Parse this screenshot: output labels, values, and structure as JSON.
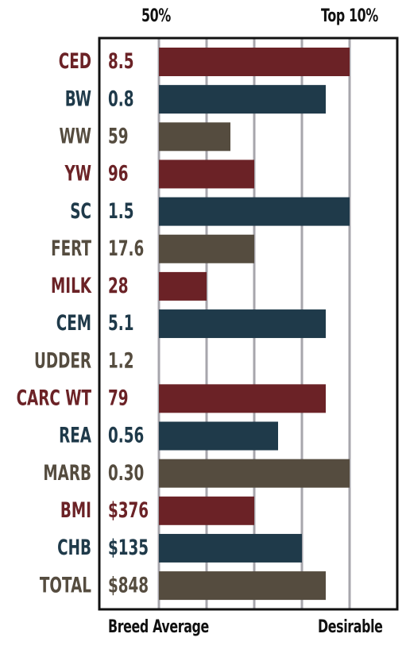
{
  "header": {
    "left_label": "50%",
    "right_label": "Top 10%"
  },
  "footer": {
    "left_label": "Breed Average",
    "right_label": "Desirable"
  },
  "colors": {
    "red": "#6b2226",
    "blue": "#1f3a4a",
    "brown": "#554c3f",
    "grid": "#a7a6ac",
    "frame": "#111111"
  },
  "chart_data": {
    "type": "bar",
    "orientation": "horizontal",
    "xlabel": "",
    "ylabel": "",
    "scale": [
      "50%",
      "Top 10%"
    ],
    "rows": [
      {
        "trait": "CED",
        "value": "8.5",
        "bar_grid_units": 4,
        "color": "red"
      },
      {
        "trait": "BW",
        "value": "0.8",
        "bar_grid_units": 3.5,
        "color": "blue"
      },
      {
        "trait": "WW",
        "value": "59",
        "bar_grid_units": 1.5,
        "color": "brown"
      },
      {
        "trait": "YW",
        "value": "96",
        "bar_grid_units": 2,
        "color": "red"
      },
      {
        "trait": "SC",
        "value": "1.5",
        "bar_grid_units": 4,
        "color": "blue"
      },
      {
        "trait": "FERT",
        "value": "17.6",
        "bar_grid_units": 2,
        "color": "brown"
      },
      {
        "trait": "MILK",
        "value": "28",
        "bar_grid_units": 1,
        "color": "red"
      },
      {
        "trait": "CEM",
        "value": "5.1",
        "bar_grid_units": 3.5,
        "color": "blue"
      },
      {
        "trait": "UDDER",
        "value": "1.2",
        "bar_grid_units": 0,
        "color": "brown"
      },
      {
        "trait": "CARC WT",
        "value": "79",
        "bar_grid_units": 3.5,
        "color": "red"
      },
      {
        "trait": "REA",
        "value": "0.56",
        "bar_grid_units": 2.5,
        "color": "blue"
      },
      {
        "trait": "MARB",
        "value": "0.30",
        "bar_grid_units": 4,
        "color": "brown"
      },
      {
        "trait": "BMI",
        "value": "$376",
        "bar_grid_units": 2,
        "color": "red"
      },
      {
        "trait": "CHB",
        "value": "$135",
        "bar_grid_units": 3,
        "color": "blue"
      },
      {
        "trait": "TOTAL",
        "value": "$848",
        "bar_grid_units": 3.5,
        "color": "brown"
      }
    ],
    "grid": true,
    "legend": "none"
  }
}
